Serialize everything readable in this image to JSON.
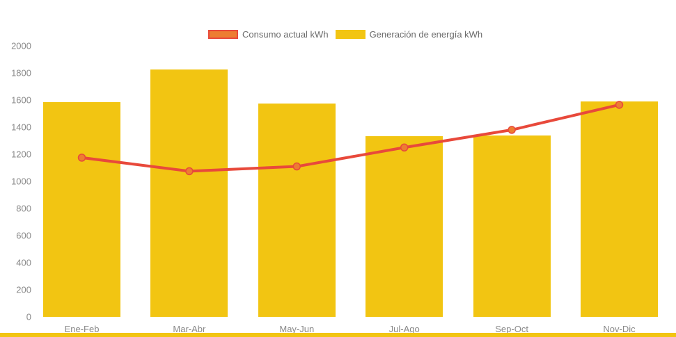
{
  "legend": {
    "items": [
      {
        "label": "Consumo actual kWh",
        "swatch_fill": "#ED7D31",
        "swatch_border": "#E8493B"
      },
      {
        "label": "Generación de energía kWh",
        "swatch_fill": "#F2C512",
        "swatch_border": "#F2C512"
      }
    ]
  },
  "colors": {
    "bar": "#F2C512",
    "line": "#E8493B",
    "marker": "#ED7D31",
    "axis_label": "#8a8a8a",
    "legend_label": "#6b6b6b",
    "bottom_strip": "#F2C512",
    "background": "#ffffff"
  },
  "chart_data": {
    "type": "bar",
    "title": "",
    "xlabel": "",
    "ylabel": "",
    "categories": [
      "Ene-Feb",
      "Mar-Abr",
      "May-Jun",
      "Jul-Ago",
      "Sep-Oct",
      "Nov-Dic"
    ],
    "series": [
      {
        "name": "Generación de energía kWh",
        "type": "bar",
        "color": "#F2C512",
        "values": [
          1585,
          1825,
          1575,
          1335,
          1340,
          1590
        ]
      },
      {
        "name": "Consumo actual kWh",
        "type": "line",
        "color": "#E8493B",
        "marker_color": "#ED7D31",
        "values": [
          1175,
          1075,
          1110,
          1250,
          1380,
          1565
        ]
      }
    ],
    "ylim": [
      0,
      2000
    ],
    "ytick_step": 200,
    "ytick_labels": [
      "0",
      "200",
      "400",
      "600",
      "800",
      "1000",
      "1200",
      "1400",
      "1600",
      "1800",
      "2000"
    ],
    "grid": false,
    "legend_position": "top-center"
  }
}
